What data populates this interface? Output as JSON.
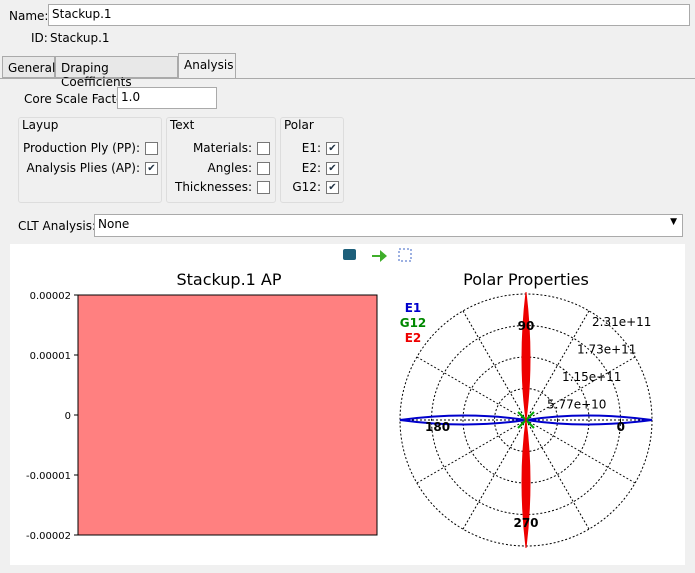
{
  "form": {
    "name_label": "Name:",
    "name_value": "Stackup.1",
    "id_label": "ID:",
    "id_value": "Stackup.1",
    "tabs": [
      "General",
      "Draping Coefficients",
      "Analysis"
    ],
    "core_scale_label": "Core Scale Factor:",
    "core_scale_value": "1.0",
    "groups": [
      {
        "title": "Layup",
        "items": [
          {
            "label": "Production Ply (PP):",
            "checked": false
          },
          {
            "label": "Analysis Plies (AP):",
            "checked": true
          }
        ]
      },
      {
        "title": "Text",
        "items": [
          {
            "label": "Materials:",
            "checked": false
          },
          {
            "label": "Angles:",
            "checked": false
          },
          {
            "label": "Thicknesses:",
            "checked": false
          }
        ]
      },
      {
        "title": "Polar",
        "items": [
          {
            "label": "E1:",
            "checked": true
          },
          {
            "label": "E2:",
            "checked": true
          },
          {
            "label": "G12:",
            "checked": true
          }
        ]
      }
    ],
    "clt_label": "CLT Analysis:",
    "clt_value": "None"
  },
  "plot": {
    "title": "Stackup.1 AP",
    "ticks": [
      "0.00002",
      "0.00001",
      "0",
      "-0.00001",
      "-0.00002"
    ]
  },
  "polar": {
    "title": "Polar Properties",
    "legend": [
      "E1",
      "G12",
      "E2"
    ],
    "angles": [
      "90",
      "180",
      "0",
      "270"
    ],
    "rings": [
      "2.31e+11",
      "1.73e+11",
      "1.15e+11",
      "5.77e+10"
    ]
  }
}
